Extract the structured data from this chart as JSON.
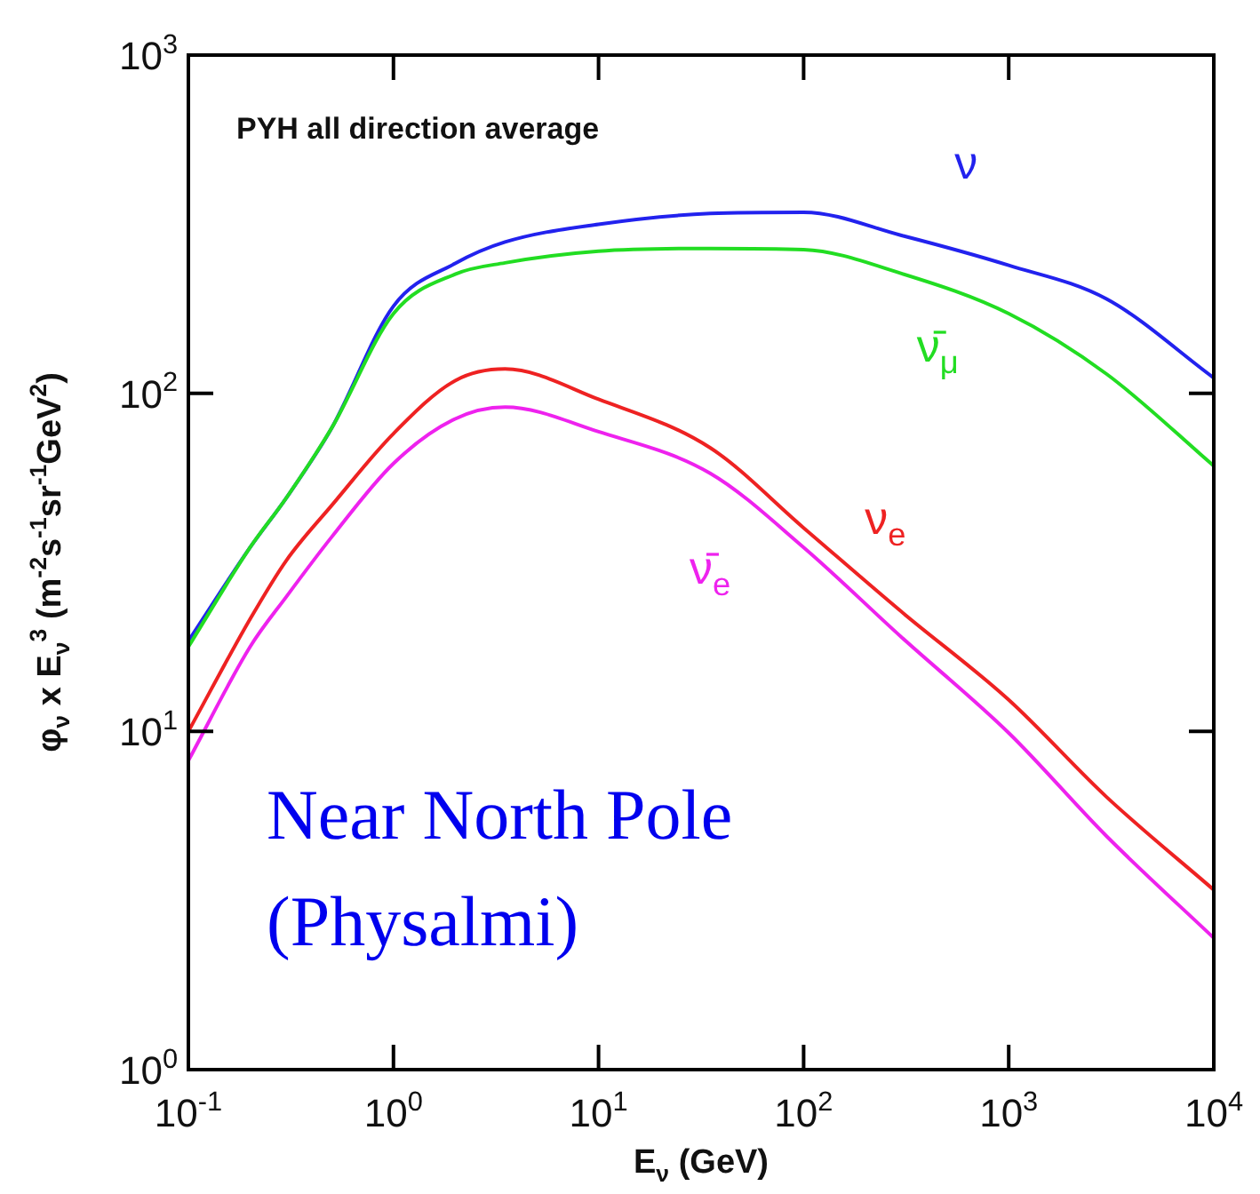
{
  "chart_data": {
    "type": "line",
    "title": "PYH all direction average",
    "xlabel": "E$_{ν}$ (GeV)",
    "ylabel": "φ$_{ν}$ x E$_{ν}$$^{3}$ (m$^{-2}$s$^{-1}$sr$^{-1}$GeV$^{2}$)",
    "annotations": [
      "Near North Pole (Physalmi)"
    ],
    "x": [
      0.1,
      0.2,
      0.3,
      0.5,
      1,
      2,
      3.5,
      10,
      35,
      100,
      300,
      1000,
      3000,
      10000
    ],
    "series": [
      {
        "name": "ν",
        "color": "#2222ee",
        "values": [
          18.5,
          35,
          49,
          79,
          181,
          242,
          280,
          316,
          340,
          343,
          293,
          239,
          190,
          111
        ]
      },
      {
        "name": "ν̄$_{μ}$",
        "color": "#22dd22",
        "values": [
          17.8,
          35,
          49,
          79,
          172,
          225,
          243,
          263,
          268,
          266,
          226,
          172,
          114,
          61
        ]
      },
      {
        "name": "ν$_{e}$",
        "color": "#ee2222",
        "values": [
          10,
          21.5,
          32,
          46.6,
          76,
          109,
          118,
          96,
          69,
          40,
          22.6,
          12.4,
          6.4,
          3.4
        ]
      },
      {
        "name": "ν̄$_{e}$",
        "color": "#ee22ee",
        "values": [
          8.2,
          17.8,
          25,
          37.6,
          62,
          84,
          91,
          77,
          58,
          35,
          19,
          9.9,
          4.9,
          2.45
        ]
      }
    ],
    "log": "xy",
    "xlim": [
      0.1,
      10000
    ],
    "ylim": [
      1,
      1000
    ],
    "xticks": [
      {
        "value": 0.1,
        "label": "10$^{-1}$"
      },
      {
        "value": 1,
        "label": "10$^{0}$"
      },
      {
        "value": 10,
        "label": "10$^{1}$"
      },
      {
        "value": 100,
        "label": "10$^{2}$"
      },
      {
        "value": 1000,
        "label": "10$^{3}$"
      },
      {
        "value": 10000,
        "label": "10$^{4}$"
      }
    ],
    "yticks": [
      {
        "value": 1,
        "label": "10$^{0}$"
      },
      {
        "value": 10,
        "label": "10$^{1}$"
      },
      {
        "value": 100,
        "label": "10$^{2}$"
      },
      {
        "value": 1000,
        "label": "10$^{3}$"
      }
    ],
    "grid": false,
    "legend": false,
    "marker": "none",
    "line_style": "solid"
  }
}
